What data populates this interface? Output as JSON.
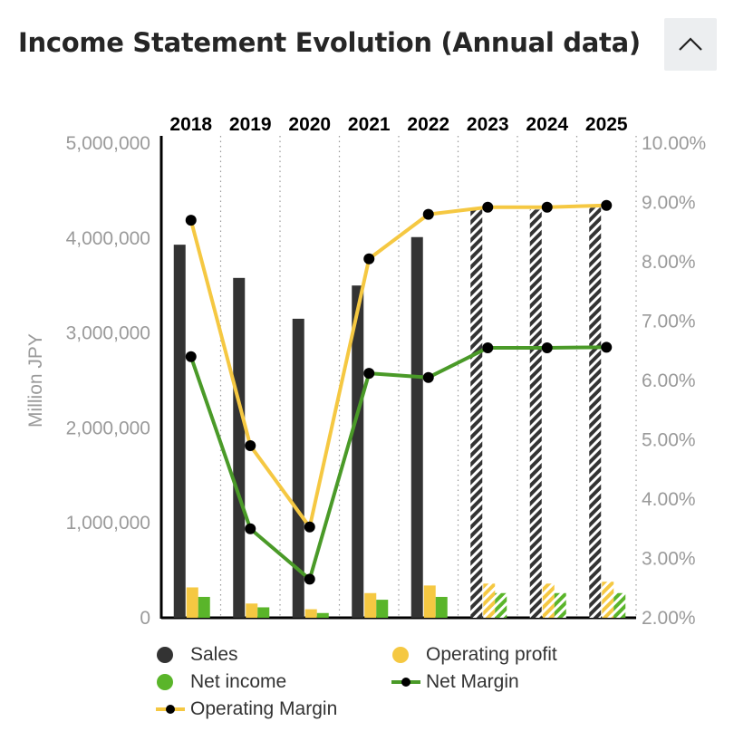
{
  "header": {
    "title": "Income Statement Evolution (Annual data)"
  },
  "colors": {
    "sales": "#333333",
    "operating_profit": "#f5c842",
    "net_income": "#5ab52a",
    "operating_margin_line": "#f5c842",
    "net_margin_line": "#4a9a28",
    "marker": "#000000",
    "axis_text": "#9a9a9a"
  },
  "legend": {
    "sales": "Sales",
    "operating_profit": "Operating profit",
    "net_income": "Net income",
    "net_margin": "Net Margin",
    "operating_margin": "Operating Margin"
  },
  "chart_data": {
    "type": "bar",
    "categories": [
      "2018",
      "2019",
      "2020",
      "2021",
      "2022",
      "2023",
      "2024",
      "2025"
    ],
    "forecast_from_index": 5,
    "ylabel": "Million JPY",
    "ylim": [
      0,
      5000000
    ],
    "y_ticks": [
      "0",
      "1,000,000",
      "2,000,000",
      "3,000,000",
      "4,000,000",
      "5,000,000"
    ],
    "y2lim": [
      2.0,
      10.0
    ],
    "y2_ticks": [
      "2.00%",
      "3.00%",
      "4.00%",
      "5.00%",
      "6.00%",
      "7.00%",
      "8.00%",
      "9.00%",
      "10.00%"
    ],
    "grid": "vertical dotted",
    "series": [
      {
        "name": "Sales",
        "axis": "left",
        "kind": "bar",
        "values": [
          3930000,
          3580000,
          3150000,
          3500000,
          4010000,
          4300000,
          4300000,
          4320000
        ]
      },
      {
        "name": "Operating profit",
        "axis": "left",
        "kind": "bar",
        "values": [
          320000,
          150000,
          90000,
          260000,
          340000,
          360000,
          360000,
          380000
        ]
      },
      {
        "name": "Net income",
        "axis": "left",
        "kind": "bar",
        "values": [
          220000,
          110000,
          50000,
          190000,
          220000,
          260000,
          260000,
          260000
        ]
      },
      {
        "name": "Operating Margin",
        "axis": "right",
        "kind": "line",
        "values": [
          8.7,
          4.9,
          3.53,
          8.05,
          8.8,
          8.92,
          8.92,
          8.95
        ]
      },
      {
        "name": "Net Margin",
        "axis": "right",
        "kind": "line",
        "values": [
          6.4,
          3.5,
          2.65,
          6.12,
          6.05,
          6.55,
          6.55,
          6.56
        ]
      }
    ]
  }
}
